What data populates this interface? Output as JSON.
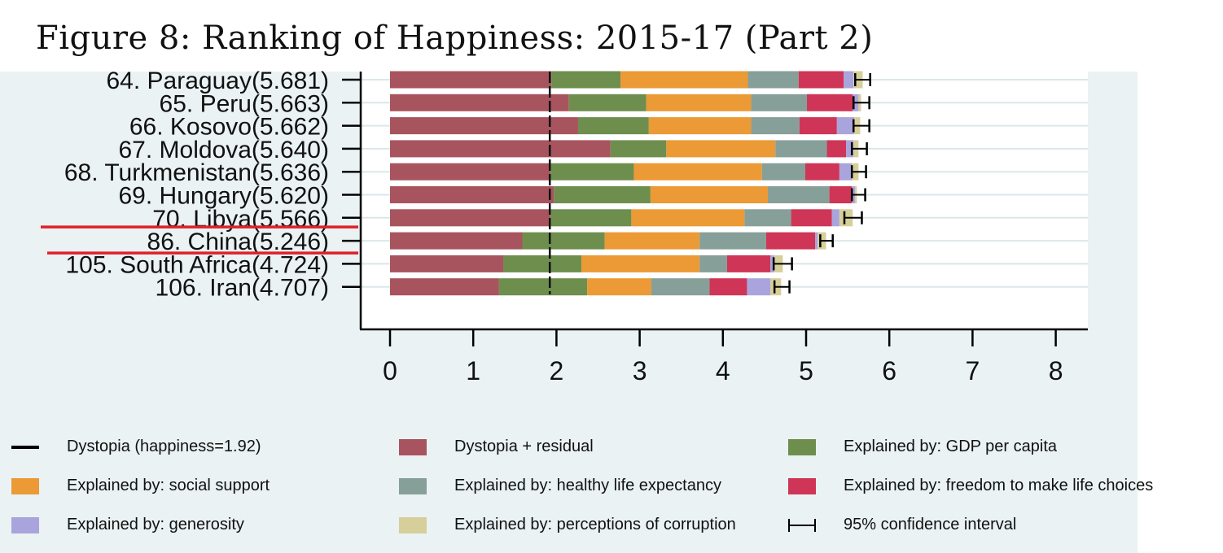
{
  "title": "Figure 8: Ranking of Happiness: 2015-17 (Part 2)",
  "chart_data": {
    "type": "bar",
    "orientation": "horizontal",
    "stacked": true,
    "xlim": [
      0,
      8
    ],
    "xticks": [
      "0",
      "1",
      "2",
      "3",
      "4",
      "5",
      "6",
      "7",
      "8"
    ],
    "dystopia_line": 1.92,
    "categories": [
      "64. Paraguay(5.681)",
      "65. Peru(5.663)",
      "66. Kosovo(5.662)",
      "67. Moldova(5.640)",
      "68. Turkmenistan(5.636)",
      "69. Hungary(5.620)",
      "70. Libya(5.566)",
      "86. China(5.246)",
      "105. South Africa(4.724)",
      "106. Iran(4.707)"
    ],
    "series": [
      {
        "name": "Dystopia + residual",
        "color": "#a8545f",
        "values": [
          1.94,
          2.15,
          2.26,
          2.65,
          1.93,
          1.97,
          1.93,
          1.59,
          1.36,
          1.31
        ]
      },
      {
        "name": "Explained by: GDP per capita",
        "color": "#6e8e4e",
        "values": [
          0.83,
          0.93,
          0.85,
          0.67,
          1.0,
          1.16,
          0.97,
          0.99,
          0.94,
          1.06
        ]
      },
      {
        "name": "Explained by: social support",
        "color": "#eb9a35",
        "values": [
          1.53,
          1.26,
          1.23,
          1.31,
          1.54,
          1.41,
          1.36,
          1.14,
          1.42,
          0.77
        ]
      },
      {
        "name": "Explained by: healthy life expectancy",
        "color": "#879f99",
        "values": [
          0.61,
          0.67,
          0.58,
          0.62,
          0.52,
          0.74,
          0.56,
          0.8,
          0.33,
          0.7
        ]
      },
      {
        "name": "Explained by: freedom to make life choices",
        "color": "#cf3556",
        "values": [
          0.54,
          0.55,
          0.45,
          0.23,
          0.41,
          0.27,
          0.49,
          0.59,
          0.52,
          0.45
        ]
      },
      {
        "name": "Explained by: generosity",
        "color": "#aaa4dd",
        "values": [
          0.12,
          0.07,
          0.21,
          0.09,
          0.15,
          0.04,
          0.09,
          0.03,
          0.05,
          0.28
        ]
      },
      {
        "name": "Explained by: perceptions of corruption",
        "color": "#d7cf9a",
        "values": [
          0.11,
          0.03,
          0.07,
          0.06,
          0.08,
          0.02,
          0.16,
          0.1,
          0.1,
          0.13
        ]
      }
    ],
    "totals": [
      5.681,
      5.663,
      5.662,
      5.64,
      5.636,
      5.62,
      5.566,
      5.246,
      4.724,
      4.707
    ],
    "ci": [
      [
        5.59,
        5.77
      ],
      [
        5.57,
        5.76
      ],
      [
        5.57,
        5.76
      ],
      [
        5.55,
        5.73
      ],
      [
        5.55,
        5.72
      ],
      [
        5.55,
        5.71
      ],
      [
        5.46,
        5.67
      ],
      [
        5.17,
        5.32
      ],
      [
        4.61,
        4.83
      ],
      [
        4.62,
        4.8
      ]
    ],
    "legend": [
      {
        "label": "Dystopia (happiness=1.92)",
        "kind": "line",
        "color": "#000000"
      },
      {
        "label": "Dystopia + residual",
        "kind": "box",
        "color": "#a8545f"
      },
      {
        "label": "Explained by: GDP per capita",
        "kind": "box",
        "color": "#6e8e4e"
      },
      {
        "label": "Explained by: social support",
        "kind": "box",
        "color": "#eb9a35"
      },
      {
        "label": "Explained by: healthy life expectancy",
        "kind": "box",
        "color": "#879f99"
      },
      {
        "label": "Explained by: freedom to make life choices",
        "kind": "box",
        "color": "#cf3556"
      },
      {
        "label": "Explained by: generosity",
        "kind": "box",
        "color": "#aaa4dd"
      },
      {
        "label": "Explained by: perceptions of corruption",
        "kind": "box",
        "color": "#d7cf9a"
      },
      {
        "label": "95% confidence interval",
        "kind": "ci",
        "color": "#000000"
      }
    ],
    "legend_position": "bottom",
    "annotation": {
      "kind": "red-underline",
      "color": "#e0202a",
      "category": "86. China(5.246)"
    }
  }
}
